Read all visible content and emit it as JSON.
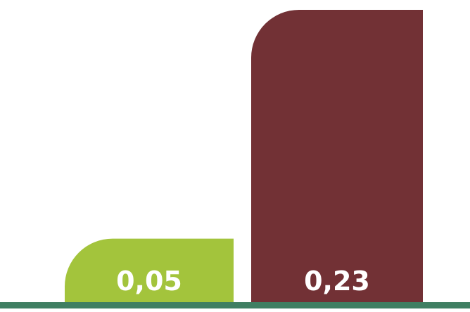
{
  "chart_data": {
    "type": "bar",
    "categories": [
      "",
      ""
    ],
    "values": [
      0.05,
      0.23
    ],
    "value_labels": [
      "0,05",
      "0,23"
    ],
    "bar_colors": [
      "#a3c43c",
      "#723135"
    ],
    "baseline_color": "#3f7f62",
    "ylim": [
      0,
      0.23
    ],
    "grid": false,
    "legend": "none",
    "title": "",
    "xlabel": "",
    "ylabel": ""
  }
}
